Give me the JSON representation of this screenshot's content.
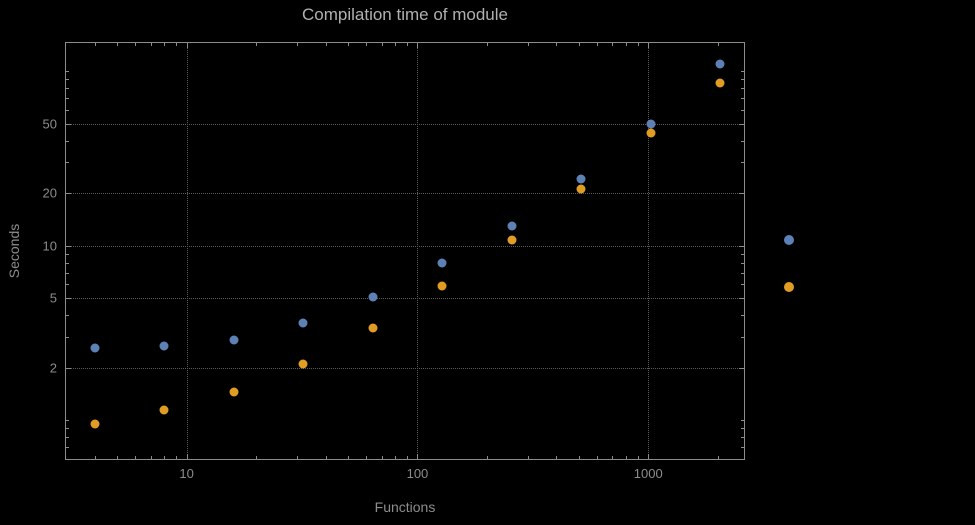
{
  "chart_data": {
    "type": "scatter",
    "title": "Compilation time of module",
    "xlabel": "Functions",
    "ylabel": "Seconds",
    "x_scale": "log",
    "y_scale": "log",
    "xlim": [
      3,
      2600
    ],
    "ylim": [
      0.6,
      145
    ],
    "grid": "dotted",
    "legend_position": "right-outside",
    "x": [
      4,
      8,
      16,
      32,
      64,
      128,
      256,
      512,
      1024,
      2048
    ],
    "series": [
      {
        "name": "series-1-blue",
        "color": "#5e81b5",
        "values": [
          2.6,
          2.65,
          2.9,
          3.6,
          5.1,
          8.0,
          13,
          24,
          50,
          110
        ]
      },
      {
        "name": "series-2-orange",
        "color": "#e19c24",
        "values": [
          0.95,
          1.15,
          1.45,
          2.1,
          3.4,
          5.9,
          10.8,
          21,
          44,
          85
        ]
      }
    ],
    "x_ticks": [
      {
        "value": 10,
        "label": "10"
      },
      {
        "value": 100,
        "label": "100"
      },
      {
        "value": 1000,
        "label": "1000"
      }
    ],
    "y_ticks": [
      {
        "value": 2,
        "label": "2"
      },
      {
        "value": 5,
        "label": "5"
      },
      {
        "value": 10,
        "label": "10"
      },
      {
        "value": 20,
        "label": "20"
      },
      {
        "value": 50,
        "label": "50"
      }
    ]
  },
  "colors": {
    "background": "#000000",
    "frame": "#8c8c8c",
    "grid": "#5c5c5c",
    "title_text": "#b0b0b0",
    "label_text": "#8c8c8c",
    "series1": "#5e81b5",
    "series2": "#e19c24"
  }
}
